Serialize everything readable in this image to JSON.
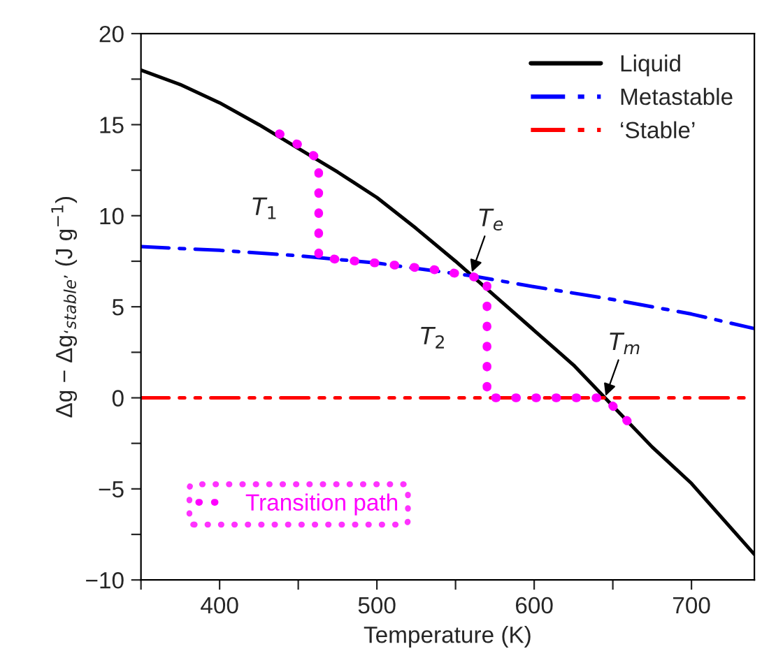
{
  "chart_data": {
    "type": "line",
    "xlabel": "Temperature (K)",
    "ylabel": "Δg − Δg$_{‘stable’}$ (J g$^{−1}$)",
    "xlim": [
      350,
      740
    ],
    "ylim": [
      -10,
      20
    ],
    "xticks": [
      {
        "value": 350,
        "label": null
      },
      400,
      {
        "value": 450,
        "label": null
      },
      500,
      {
        "value": 550,
        "label": null
      },
      600,
      {
        "value": 650,
        "label": null
      },
      700
    ],
    "yticks": [
      -10,
      {
        "value": -7.5,
        "label": null
      },
      -5,
      {
        "value": -2.5,
        "label": null
      },
      0,
      {
        "value": 2.5,
        "label": null
      },
      5,
      {
        "value": 7.5,
        "label": null
      },
      10,
      {
        "value": 12.5,
        "label": null
      },
      15,
      {
        "value": 17.5,
        "label": null
      },
      20
    ],
    "legend": "top right",
    "grid": false,
    "series": [
      {
        "name": "Liquid",
        "color": "#000000",
        "line_style": "solid",
        "x": [
          350,
          375,
          400,
          425,
          450,
          475,
          500,
          525,
          550,
          575,
          600,
          625,
          645,
          675,
          700,
          740
        ],
        "values": [
          18.0,
          17.2,
          16.2,
          15.0,
          13.7,
          12.4,
          11.0,
          9.3,
          7.5,
          5.6,
          3.7,
          1.8,
          0,
          -2.7,
          -4.7,
          -8.6
        ]
      },
      {
        "name": "Metastable",
        "color": "#0000ff",
        "line_style": "dashdot",
        "x": [
          350,
          400,
          450,
          500,
          560,
          600,
          650,
          700,
          740
        ],
        "values": [
          8.3,
          8.1,
          7.8,
          7.4,
          6.7,
          6.1,
          5.4,
          4.6,
          3.8
        ]
      },
      {
        "name": "‘Stable’",
        "color": "#ff0000",
        "line_style": "dashdotdot",
        "x": [
          350,
          740
        ],
        "values": [
          0,
          0
        ]
      },
      {
        "name": "Transition path",
        "color": "#ff00ff",
        "line_style": "dotted",
        "x": [
          438,
          450,
          463,
          463,
          500,
          540,
          570,
          570,
          600,
          645,
          664
        ],
        "values": [
          14.5,
          13.9,
          13.1,
          7.7,
          7.4,
          7.0,
          6.5,
          0,
          0,
          0,
          -1.7
        ]
      }
    ],
    "annotations": [
      {
        "text": "T$_{1}$",
        "x": 463,
        "y": 10.4
      },
      {
        "text": "T$_{2}$",
        "x": 570,
        "y": 3.3
      },
      {
        "text": "T$_{e}$",
        "x": 560,
        "y": 6.8
      },
      {
        "text": "T$_{m}$",
        "x": 645,
        "y": 0
      }
    ]
  }
}
